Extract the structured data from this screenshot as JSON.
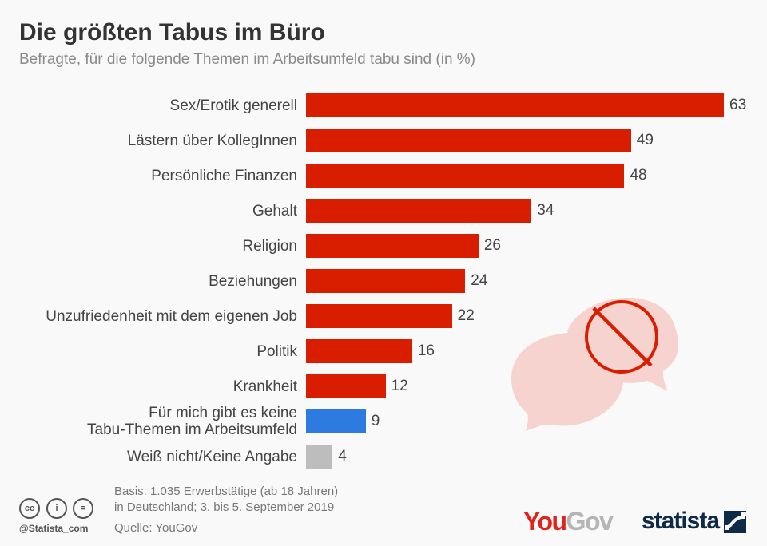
{
  "title": "Die größten Tabus im Büro",
  "subtitle": "Befragte, für die folgende Themen im Arbeitsumfeld tabu sind (in %)",
  "chart_data": {
    "type": "bar",
    "orientation": "horizontal",
    "categories": [
      "Sex/Erotik generell",
      "Lästern über KollegInnen",
      "Persönliche Finanzen",
      "Gehalt",
      "Religion",
      "Beziehungen",
      "Unzufriedenheit mit dem eigenen Job",
      "Politik",
      "Krankheit",
      "Für mich gibt es keine Tabu-Themen im Arbeitsumfeld",
      "Weiß nicht/Keine Angabe"
    ],
    "label_lines": [
      [
        "Sex/Erotik generell"
      ],
      [
        "Lästern über KollegInnen"
      ],
      [
        "Persönliche Finanzen"
      ],
      [
        "Gehalt"
      ],
      [
        "Religion"
      ],
      [
        "Beziehungen"
      ],
      [
        "Unzufriedenheit mit dem eigenen Job"
      ],
      [
        "Politik"
      ],
      [
        "Krankheit"
      ],
      [
        "Für mich gibt es keine",
        "Tabu-Themen im Arbeitsumfeld"
      ],
      [
        "Weiß nicht/Keine Angabe"
      ]
    ],
    "values": [
      63,
      49,
      48,
      34,
      26,
      24,
      22,
      16,
      12,
      9,
      4
    ],
    "colors": [
      "#d91e00",
      "#d91e00",
      "#d91e00",
      "#d91e00",
      "#d91e00",
      "#d91e00",
      "#d91e00",
      "#d91e00",
      "#d91e00",
      "#2d7be0",
      "#bdbdbd"
    ],
    "xlim": [
      0,
      63
    ],
    "unit": "%"
  },
  "footer": {
    "basis_line1": "Basis: 1.035 Erwerbstätige (ab 18 Jahren)",
    "basis_line2": "in Deutschland; 3. bis 5. September 2019",
    "source": "Quelle: YouGov",
    "handle": "@Statista_com",
    "cc_icons": [
      "cc",
      "i",
      "="
    ]
  },
  "logos": {
    "yougov_you": "You",
    "yougov_gov": "Gov",
    "statista": "statista"
  },
  "colors": {
    "bar_main": "#d91e00",
    "bar_none": "#2d7be0",
    "bar_unknown": "#bdbdbd",
    "bubble": "#f7d3cf"
  }
}
